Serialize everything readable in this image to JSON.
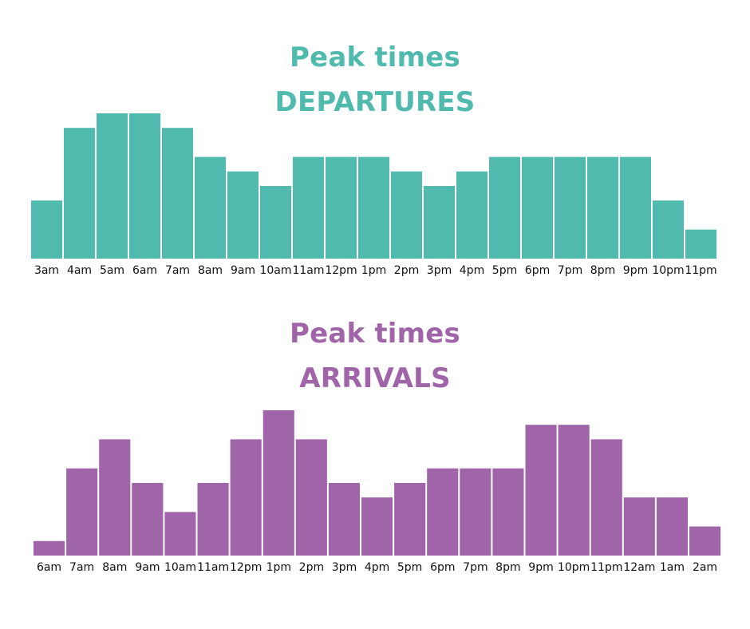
{
  "chart_data": [
    {
      "type": "bar",
      "title": "Peak times",
      "subtitle": "DEPARTURES",
      "color": "#4fbaad",
      "categories": [
        "3am",
        "4am",
        "5am",
        "6am",
        "7am",
        "8am",
        "9am",
        "10am",
        "11am",
        "12pm",
        "1pm",
        "2pm",
        "3pm",
        "4pm",
        "5pm",
        "6pm",
        "7pm",
        "8pm",
        "9pm",
        "10pm",
        "11pm"
      ],
      "values": [
        4,
        9,
        10,
        10,
        9,
        7,
        6,
        5,
        7,
        7,
        7,
        6,
        5,
        6,
        7,
        7,
        7,
        7,
        7,
        4,
        2
      ],
      "ylim": [
        0,
        10
      ],
      "grid": false,
      "xlabel": "",
      "ylabel": ""
    },
    {
      "type": "bar",
      "title": "Peak times",
      "subtitle": "ARRIVALS",
      "color": "#a064a9",
      "categories": [
        "6am",
        "7am",
        "8am",
        "9am",
        "10am",
        "11am",
        "12pm",
        "1pm",
        "2pm",
        "3pm",
        "4pm",
        "5pm",
        "6pm",
        "7pm",
        "8pm",
        "9pm",
        "10pm",
        "11pm",
        "12am",
        "1am",
        "2am"
      ],
      "values": [
        1,
        6,
        8,
        5,
        3,
        5,
        8,
        10,
        8,
        5,
        4,
        5,
        6,
        6,
        6,
        9,
        9,
        8,
        4,
        4,
        2
      ],
      "ylim": [
        0,
        10
      ],
      "grid": false,
      "xlabel": "",
      "ylabel": ""
    }
  ]
}
